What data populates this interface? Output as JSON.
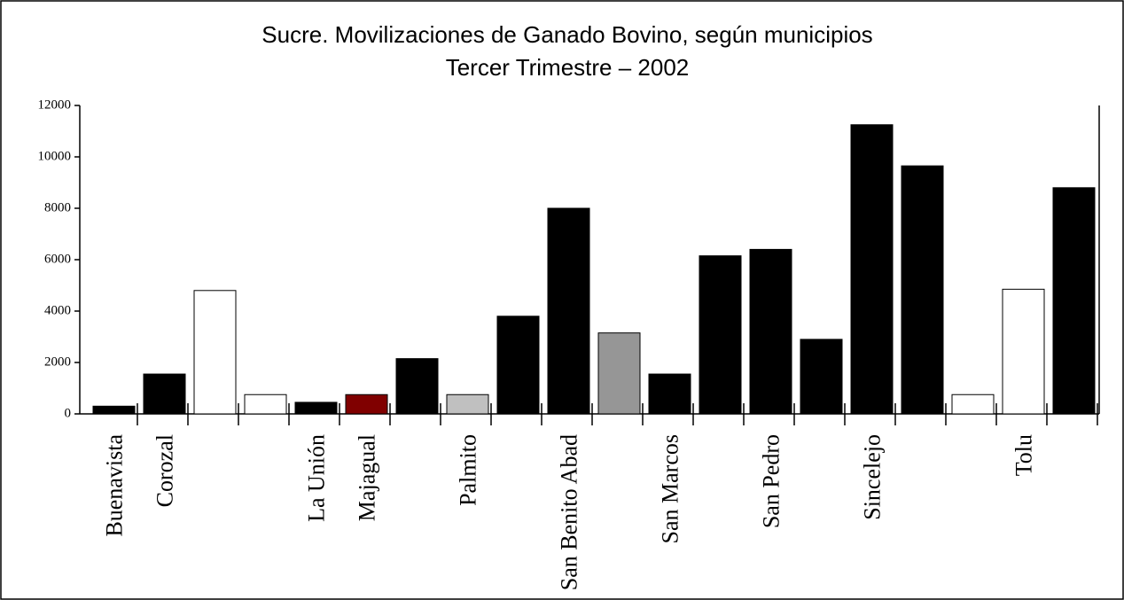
{
  "chart_data": {
    "type": "bar",
    "title": "Sucre. Movilizaciones de Ganado Bovino, según municipios",
    "subtitle": "Tercer Trimestre – 2002",
    "categories": [
      "Buenavista",
      "Corozal",
      null,
      null,
      "La Unión",
      "Majagual",
      null,
      "Palmito",
      null,
      "San Benito Abad",
      null,
      "San Marcos",
      null,
      "San Pedro",
      null,
      "Sincelejo",
      null,
      null,
      "Tolu",
      null
    ],
    "values": [
      300,
      1550,
      4800,
      750,
      450,
      750,
      2150,
      750,
      3800,
      8000,
      3150,
      1550,
      6150,
      6400,
      2900,
      11250,
      9650,
      750,
      4850,
      8800
    ],
    "colors": [
      "#000000",
      "#000000",
      "#ffffff",
      "#ffffff",
      "#000000",
      "#800000",
      "#000000",
      "#c0c0c0",
      "#000000",
      "#000000",
      "#969696",
      "#000000",
      "#000000",
      "#000000",
      "#000000",
      "#000000",
      "#000000",
      "#ffffff",
      "#ffffff",
      "#000000"
    ],
    "ylim": [
      0,
      12000
    ],
    "yticks": [
      0,
      2000,
      4000,
      6000,
      8000,
      10000,
      12000
    ]
  }
}
